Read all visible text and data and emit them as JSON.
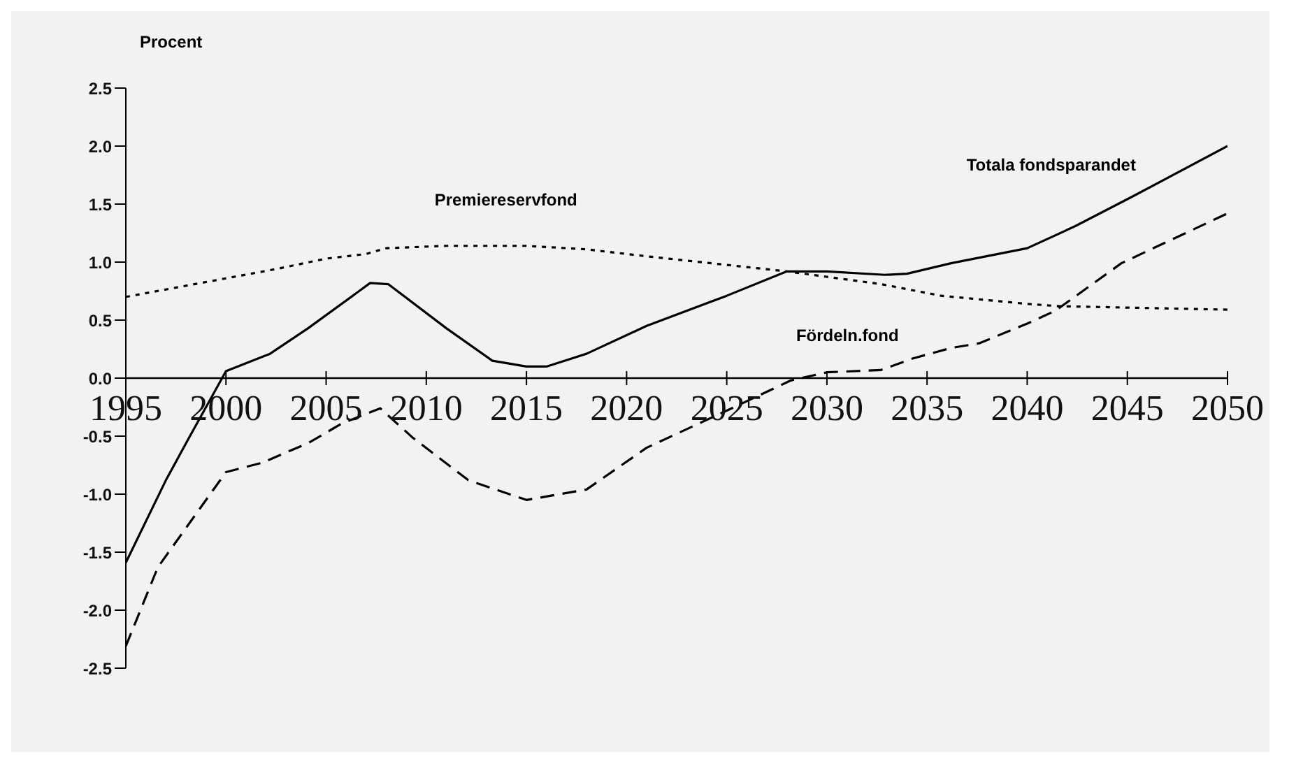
{
  "chart_data": {
    "type": "line",
    "ylabel": "Procent",
    "xlim": [
      1995,
      2050
    ],
    "xticks": [
      1995,
      2000,
      2005,
      2010,
      2015,
      2020,
      2025,
      2030,
      2035,
      2040,
      2045,
      2050
    ],
    "ylim": [
      -2.5,
      2.5
    ],
    "yticks": [
      {
        "value": -2.5,
        "label": "-2.5"
      },
      {
        "value": -2,
        "label": "-2.0"
      },
      {
        "value": -1.5,
        "label": "-1.5"
      },
      {
        "value": -1,
        "label": "-1.0"
      },
      {
        "value": -0.5,
        "label": "-0.5"
      },
      {
        "value": 0,
        "label": "0.0"
      },
      {
        "value": 0.5,
        "label": "0.5"
      },
      {
        "value": 1,
        "label": "1.0"
      },
      {
        "value": 1.5,
        "label": "1.5"
      },
      {
        "value": 2,
        "label": "2.0"
      },
      {
        "value": 2.5,
        "label": "2.5"
      }
    ],
    "grid": false,
    "legend": false,
    "marker": "none",
    "series": [
      {
        "name": "Totala fondsparandet",
        "color": "#000000",
        "line_style": "solid",
        "x": [
          1995,
          1997,
          1998.2,
          2000,
          2002.2,
          2004.1,
          2007.2,
          2008.1,
          2011,
          2013.3,
          2015,
          2016,
          2018,
          2021,
          2025,
          2028,
          2030,
          2032.9,
          2034,
          2036.2,
          2040,
          2042.4,
          2045.2,
          2050
        ],
        "values": [
          -1.59,
          -0.88,
          -0.5,
          0.06,
          0.21,
          0.43,
          0.82,
          0.81,
          0.43,
          0.15,
          0.1,
          0.1,
          0.21,
          0.45,
          0.71,
          0.92,
          0.92,
          0.89,
          0.9,
          0.99,
          1.12,
          1.31,
          1.56,
          2.0
        ]
      },
      {
        "name": "Premiereservfond",
        "color": "#000000",
        "line_style": "dotted",
        "x": [
          1995,
          2000,
          2002.5,
          2005,
          2007,
          2008,
          2011,
          2015,
          2018,
          2021,
          2028,
          2032.7,
          2035.7,
          2040,
          2041.6,
          2050
        ],
        "values": [
          0.7,
          0.86,
          0.94,
          1.03,
          1.07,
          1.12,
          1.14,
          1.14,
          1.11,
          1.05,
          0.92,
          0.81,
          0.71,
          0.64,
          0.62,
          0.59
        ]
      },
      {
        "name": "Fördeln.fond",
        "color": "#000000",
        "line_style": "dashed",
        "x": [
          1995,
          1996.6,
          2000,
          2001.8,
          2004.1,
          2005.8,
          2007.7,
          2009.3,
          2012.1,
          2015,
          2018,
          2021,
          2025,
          2028.2,
          2030,
          2032.7,
          2034.3,
          2036.2,
          2037.6,
          2040,
          2041.4,
          2044.7,
          2050
        ],
        "values": [
          -2.31,
          -1.63,
          -0.81,
          -0.73,
          -0.56,
          -0.39,
          -0.26,
          -0.51,
          -0.88,
          -1.05,
          -0.96,
          -0.6,
          -0.28,
          -0.02,
          0.05,
          0.07,
          0.17,
          0.26,
          0.3,
          0.47,
          0.58,
          0.99,
          1.42
        ]
      }
    ]
  }
}
